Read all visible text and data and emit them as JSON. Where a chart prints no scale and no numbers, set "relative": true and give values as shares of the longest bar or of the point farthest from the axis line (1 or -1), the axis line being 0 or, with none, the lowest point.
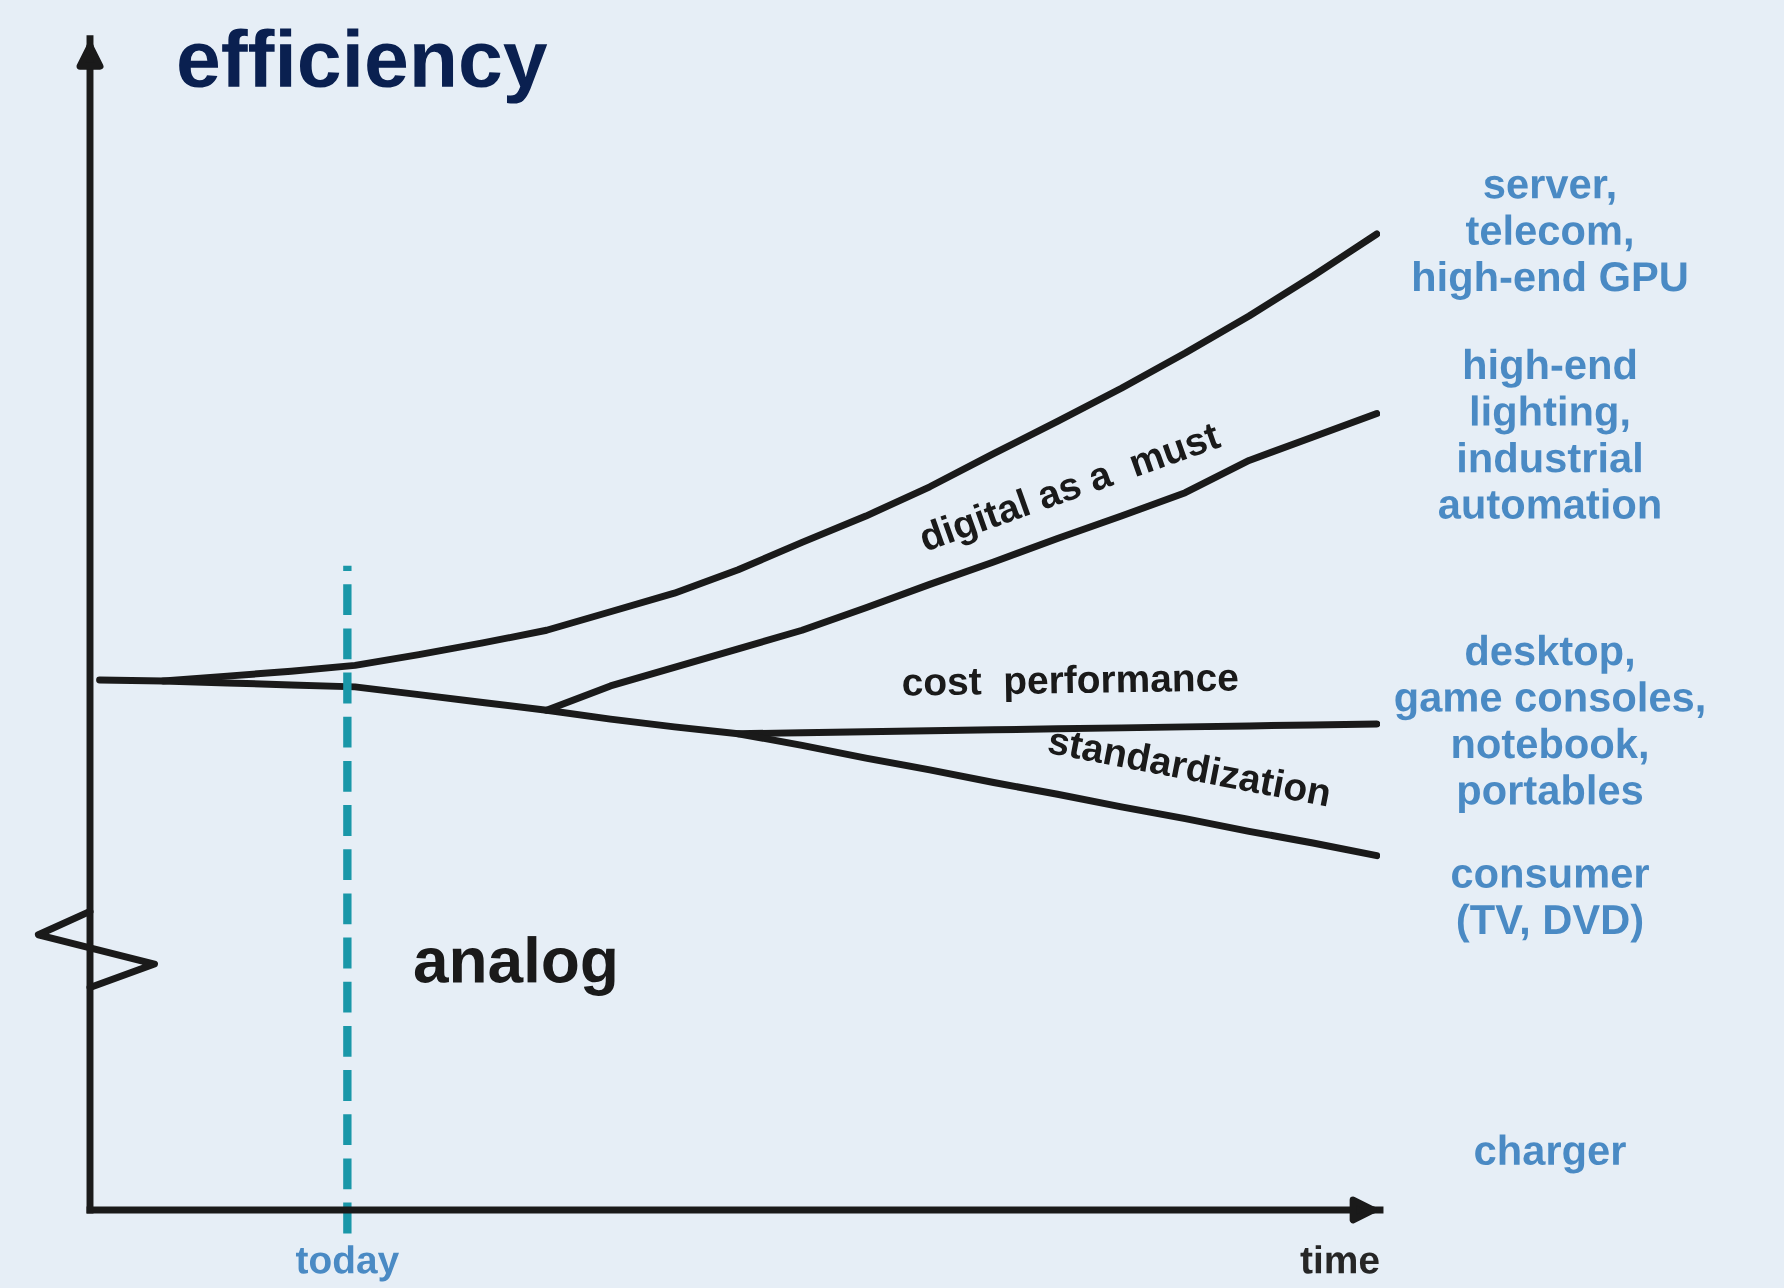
{
  "chart_data": {
    "type": "line",
    "relative": true,
    "title": "efficiency",
    "xlabel": "time",
    "categories": [
      null,
      null,
      null,
      null,
      null,
      null,
      null,
      null,
      null,
      null,
      null,
      null,
      null,
      null,
      null,
      null,
      null,
      null,
      null,
      null,
      null
    ],
    "series": [
      {
        "name": "server,\ntelecom,\nhigh-end GPU",
        "color": "#1a1a1a",
        "values": [
          null,
          0.542,
          0.547,
          0.552,
          0.558,
          0.569,
          0.581,
          0.594,
          0.613,
          0.632,
          0.656,
          0.684,
          0.711,
          0.741,
          0.775,
          0.808,
          0.842,
          0.878,
          0.916,
          0.957,
          1.0
        ]
      },
      {
        "name": "high-end\nlighting,\nindustrial\nautomation",
        "color": "#1a1a1a",
        "values": [
          null,
          null,
          null,
          null,
          null,
          null,
          null,
          0.512,
          0.537,
          0.556,
          0.575,
          0.594,
          0.617,
          0.641,
          0.664,
          0.688,
          0.711,
          0.735,
          0.768,
          0.792,
          0.816
        ]
      },
      {
        "name": "desktop,\ngame consoles,\nnotebook,\nportables",
        "color": "#1a1a1a",
        "values": [
          null,
          null,
          null,
          null,
          null,
          null,
          null,
          null,
          null,
          null,
          0.488,
          0.489,
          0.49,
          0.491,
          0.492,
          0.493,
          0.494,
          0.495,
          0.496,
          0.497,
          0.498
        ]
      },
      {
        "name": "consumer\n(TV, DVD)",
        "color": "#1a1a1a",
        "values": [
          0.543,
          0.542,
          0.54,
          0.538,
          0.536,
          0.528,
          0.52,
          0.512,
          0.503,
          0.495,
          0.488,
          0.476,
          0.463,
          0.451,
          0.438,
          0.426,
          0.413,
          0.401,
          0.388,
          0.376,
          0.363
        ]
      }
    ],
    "annotations": [
      "digital as a  must",
      "cost  performance",
      "standardization",
      "analog",
      "charger",
      "today"
    ],
    "legend": false,
    "marker": "none",
    "line_style": "solid"
  }
}
